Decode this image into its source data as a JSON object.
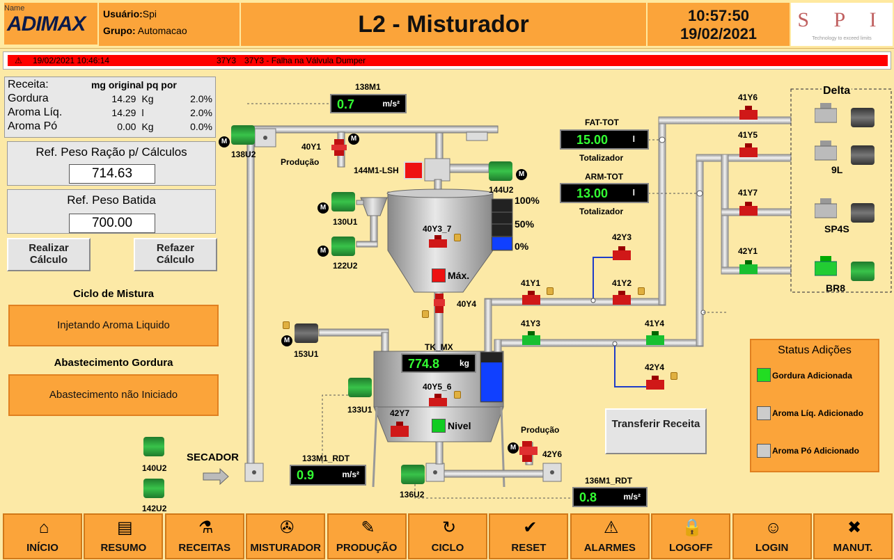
{
  "header": {
    "name_label": "Name",
    "logo": "ADIMAX",
    "user_label": "Usuário:",
    "user_value": "Spi",
    "group_label": "Grupo:",
    "group_value": "Automacao",
    "title": "L2 - Misturador",
    "time": "10:57:50",
    "date": "19/02/2021",
    "spi_logo": "S P I",
    "spi_tagline": "Technology to exceed limits"
  },
  "alarm": {
    "datetime": "19/02/2021 10:46:14",
    "tag": "37Y3",
    "message": "37Y3 - Falha na Válvula Dumper",
    "color": "#ff0000"
  },
  "recipe": {
    "header_label": "Receita:",
    "header_name": "mg original pq por",
    "rows": [
      {
        "name": "Gordura",
        "qty": "14.29",
        "unit": "Kg",
        "pct": "2.0%"
      },
      {
        "name": "Aroma Líq.",
        "qty": "14.29",
        "unit": "l",
        "pct": "2.0%"
      },
      {
        "name": "Aroma Pó",
        "qty": "0.00",
        "unit": "Kg",
        "pct": "0.0%"
      }
    ]
  },
  "ref_peso_racao": {
    "label": "Ref. Peso Ração p/ Cálculos",
    "value": "714.63"
  },
  "ref_peso_batida": {
    "label": "Ref. Peso Batida",
    "value": "700.00"
  },
  "buttons": {
    "realizar": "Realizar Cálculo",
    "refazer": "Refazer Cálculo",
    "transferir": "Transferir Receita"
  },
  "ciclo": {
    "title": "Ciclo de Mistura",
    "state": "Injetando Aroma Liquido"
  },
  "abastecimento": {
    "title": "Abastecimento Gordura",
    "state": "Abastecimento não Iniciado"
  },
  "status_adicoes": {
    "title": "Status Adições",
    "items": [
      {
        "label": "Gordura Adicionada",
        "color": "#22dd22"
      },
      {
        "label": "Aroma Líq. Adicionado",
        "color": "#cccccc"
      },
      {
        "label": "Aroma Pó Adicionado",
        "color": "#cccccc"
      }
    ]
  },
  "meters": {
    "m138M1": {
      "tag": "138M1",
      "value": "0.7",
      "unit": "m/s²"
    },
    "m133M1": {
      "tag": "133M1_RDT",
      "value": "0.9",
      "unit": "m/s²"
    },
    "m136M1": {
      "tag": "136M1_RDT",
      "value": "0.8",
      "unit": "m/s²"
    },
    "fat": {
      "tag": "FAT-TOT",
      "value": "15.00",
      "unit": "l",
      "sub": "Totalizador"
    },
    "arm": {
      "tag": "ARM-TOT",
      "value": "13.00",
      "unit": "l",
      "sub": "Totalizador"
    },
    "tk": {
      "tag": "TK_MX",
      "value": "774.8",
      "unit": "kg"
    }
  },
  "level_scale": {
    "p100": "100%",
    "p50": "50%",
    "p0": "0%",
    "hopper_fill": 0.25,
    "tank_fill": 0.8
  },
  "tags": {
    "m138U2": "138U2",
    "v40Y1": "40Y1",
    "producao1": "Produção",
    "lsh": "144M1-LSH",
    "m144U2": "144U2",
    "m130U1": "130U1",
    "m122U2": "122U2",
    "v40Y3": "40Y3_7",
    "max": "Máx.",
    "v40Y4": "40Y4",
    "m153U1": "153U1",
    "v40Y5": "40Y5_6",
    "m133U1": "133U1",
    "v42Y7": "42Y7",
    "nivel": "Nivel",
    "producao2": "Produção",
    "v42Y6": "42Y6",
    "secador": "SECADOR",
    "m136U2": "136U2",
    "m140U2": "140U2",
    "m142U2": "142U2",
    "v42Y3": "42Y3",
    "v41Y1": "41Y1",
    "v41Y2": "41Y2",
    "v41Y3": "41Y3",
    "v41Y4": "41Y4",
    "v42Y4": "42Y4",
    "v41Y6": "41Y6",
    "v41Y5": "41Y5",
    "v41Y7": "41Y7",
    "v42Y1": "42Y1",
    "delta": "Delta",
    "t9L": "9L",
    "tSP4S": "SP4S",
    "tBR8": "BR8",
    "motor_badge": "M"
  },
  "nav": [
    {
      "label": "INÍCIO",
      "icon": "home-icon",
      "glyph": "⌂"
    },
    {
      "label": "RESUMO",
      "icon": "clipboard-icon",
      "glyph": "▤"
    },
    {
      "label": "RECEITAS",
      "icon": "flask-icon",
      "glyph": "⚗"
    },
    {
      "label": "MISTURADOR",
      "icon": "mixer-icon",
      "glyph": "✇"
    },
    {
      "label": "PRODUÇÃO",
      "icon": "notes-icon",
      "glyph": "✎"
    },
    {
      "label": "CICLO",
      "icon": "cycle-icon",
      "glyph": "↻"
    },
    {
      "label": "RESET",
      "icon": "check-icon",
      "glyph": "✔"
    },
    {
      "label": "ALARMES",
      "icon": "warning-icon",
      "glyph": "⚠"
    },
    {
      "label": "LOGOFF",
      "icon": "lock-icon",
      "glyph": "🔒"
    },
    {
      "label": "LOGIN",
      "icon": "user-icon",
      "glyph": "☺"
    },
    {
      "label": "MANUT.",
      "icon": "tools-icon",
      "glyph": "✖"
    }
  ]
}
